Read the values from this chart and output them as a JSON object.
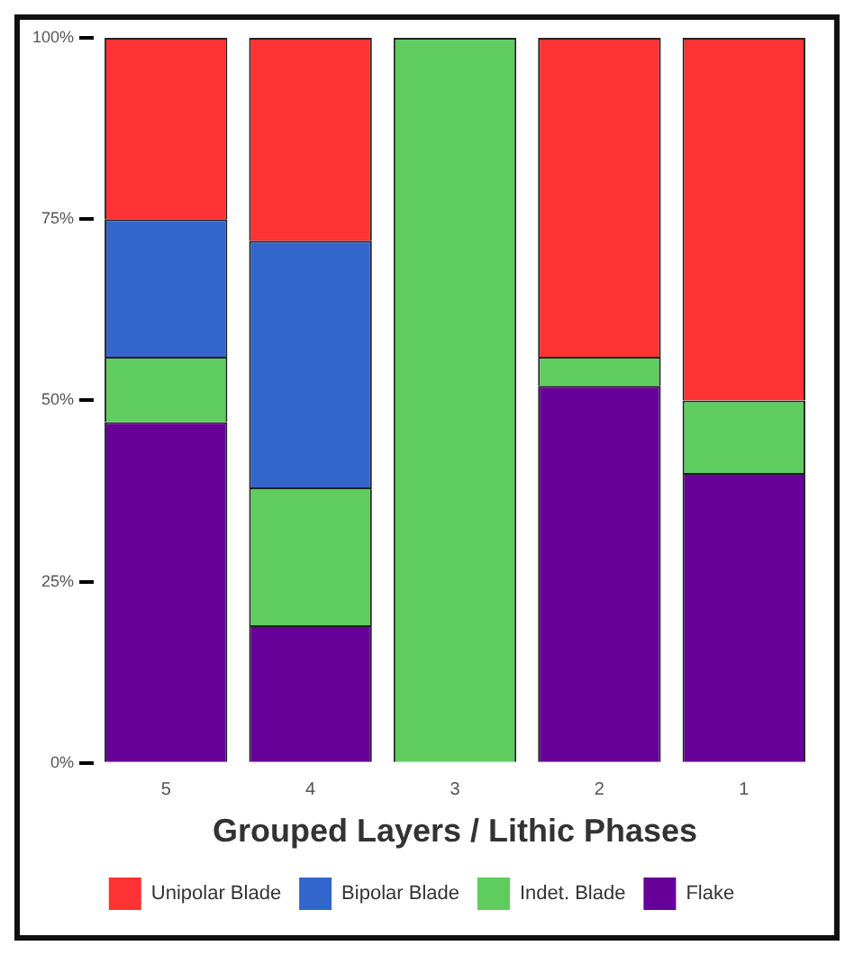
{
  "chart_data": {
    "type": "bar",
    "stacked": true,
    "xlabel": "Grouped Layers / Lithic Phases",
    "categories": [
      "5",
      "4",
      "3",
      "2",
      "1"
    ],
    "series": [
      {
        "name": "Flake",
        "color": "#660099",
        "values": [
          47,
          19,
          0,
          52,
          40
        ]
      },
      {
        "name": "Indet. Blade",
        "color": "#5fcc5f",
        "values": [
          9,
          19,
          100,
          4,
          10
        ]
      },
      {
        "name": "Bipolar Blade",
        "color": "#3366cc",
        "values": [
          19,
          34,
          0,
          0,
          0
        ]
      },
      {
        "name": "Unipolar Blade",
        "color": "#ff3333",
        "values": [
          25,
          28,
          0,
          44,
          50
        ]
      }
    ],
    "ylim": [
      0,
      100
    ],
    "yticks": [
      {
        "value": 0,
        "label": "0%"
      },
      {
        "value": 25,
        "label": "25%"
      },
      {
        "value": 50,
        "label": "50%"
      },
      {
        "value": 75,
        "label": "75%"
      },
      {
        "value": 100,
        "label": "100%"
      }
    ],
    "grid": false,
    "legend": "bottom"
  }
}
